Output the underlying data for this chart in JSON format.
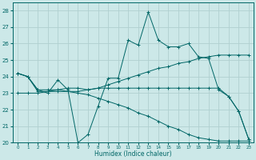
{
  "xlabel": "Humidex (Indice chaleur)",
  "bg_color": "#cce8e8",
  "grid_color": "#b0d0d0",
  "line_color": "#006666",
  "xlim": [
    -0.5,
    23.5
  ],
  "ylim": [
    20,
    28.5
  ],
  "yticks": [
    20,
    21,
    22,
    23,
    24,
    25,
    26,
    27,
    28
  ],
  "xticks": [
    0,
    1,
    2,
    3,
    4,
    5,
    6,
    7,
    8,
    9,
    10,
    11,
    12,
    13,
    14,
    15,
    16,
    17,
    18,
    19,
    20,
    21,
    22,
    23
  ],
  "series": [
    {
      "x": [
        0,
        1,
        2,
        3,
        4,
        5,
        6,
        7,
        8,
        9,
        10,
        11,
        12,
        13,
        14,
        15,
        16,
        17,
        18,
        19,
        20,
        21,
        22,
        23
      ],
      "y": [
        24.2,
        24.0,
        23.2,
        23.0,
        23.8,
        23.2,
        20.0,
        20.5,
        22.2,
        23.9,
        23.9,
        26.2,
        25.9,
        27.9,
        26.2,
        25.8,
        25.8,
        26.0,
        25.2,
        25.1,
        23.2,
        22.8,
        21.9,
        20.2
      ]
    },
    {
      "x": [
        0,
        1,
        2,
        3,
        4,
        5,
        6,
        7,
        8,
        9,
        10,
        11,
        12,
        13,
        14,
        15,
        16,
        17,
        18,
        19,
        20,
        21,
        22,
        23
      ],
      "y": [
        24.2,
        24.0,
        23.1,
        23.1,
        23.1,
        23.1,
        23.1,
        23.2,
        23.3,
        23.5,
        23.7,
        23.9,
        24.1,
        24.3,
        24.5,
        24.6,
        24.8,
        24.9,
        25.1,
        25.2,
        25.3,
        25.3,
        25.3,
        25.3
      ]
    },
    {
      "x": [
        0,
        1,
        2,
        3,
        4,
        5,
        6,
        7,
        8,
        9,
        10,
        11,
        12,
        13,
        14,
        15,
        16,
        17,
        18,
        19,
        20,
        21,
        22,
        23
      ],
      "y": [
        24.2,
        24.0,
        23.2,
        23.2,
        23.2,
        23.1,
        23.0,
        22.9,
        22.7,
        22.5,
        22.3,
        22.1,
        21.8,
        21.6,
        21.3,
        21.0,
        20.8,
        20.5,
        20.3,
        20.2,
        20.1,
        20.1,
        20.1,
        20.1
      ]
    },
    {
      "x": [
        0,
        1,
        2,
        3,
        4,
        5,
        6,
        7,
        8,
        9,
        10,
        11,
        12,
        13,
        14,
        15,
        16,
        17,
        18,
        19,
        20,
        21,
        22,
        23
      ],
      "y": [
        23.0,
        23.0,
        23.0,
        23.1,
        23.2,
        23.3,
        23.3,
        23.2,
        23.3,
        23.3,
        23.3,
        23.3,
        23.3,
        23.3,
        23.3,
        23.3,
        23.3,
        23.3,
        23.3,
        23.3,
        23.3,
        22.8,
        21.9,
        20.2
      ]
    }
  ]
}
